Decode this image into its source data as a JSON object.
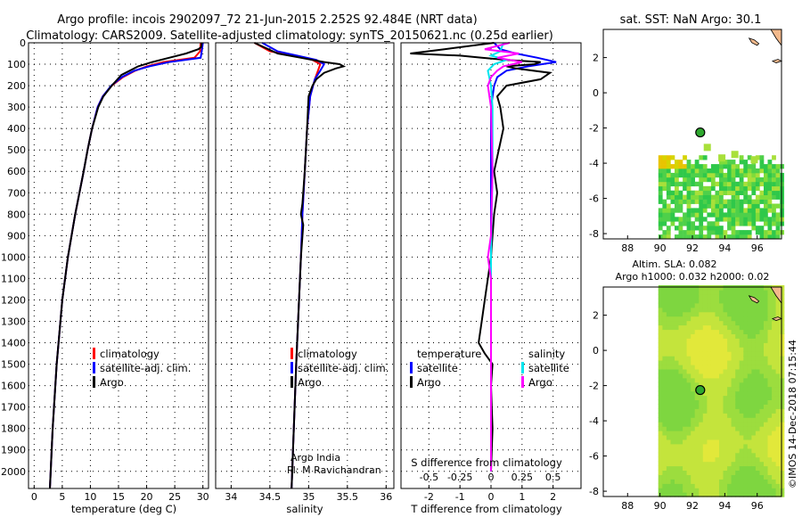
{
  "title_line1": "Argo profile: incois 2902097_72 21-Jun-2015 2.252S 92.484E (NRT data)",
  "title_line2": "Climatology: CARS2009. Satellite-adjusted climatology: synTS_20150621.nc (0.25d earlier)",
  "colors": {
    "climatology": "#ff0000",
    "satellite": "#0000ff",
    "argo": "#000000",
    "sat_salinity": "#00e5ee",
    "argo_salinity": "#ff00ff"
  },
  "chart_data": [
    {
      "id": "temperature",
      "type": "line",
      "xlabel": "temperature (deg C)",
      "ylabel": "",
      "xlim": [
        -1,
        31
      ],
      "ylim": [
        2080,
        0
      ],
      "xticks": [
        0,
        5,
        10,
        15,
        20,
        25,
        30
      ],
      "yticks": [
        0,
        100,
        200,
        300,
        400,
        500,
        600,
        700,
        800,
        900,
        1000,
        1100,
        1200,
        1300,
        1400,
        1500,
        1600,
        1700,
        1800,
        1900,
        2000
      ],
      "legend": [
        "climatology",
        "satellite-adj. clim.",
        "Argo"
      ],
      "series": [
        {
          "name": "climatology",
          "color": "#ff0000",
          "depth": [
            0,
            40,
            70,
            90,
            110,
            130,
            160,
            200,
            250,
            300,
            400,
            500,
            600,
            800,
            1000,
            1200,
            1500,
            1800,
            2080
          ],
          "values": [
            29.6,
            29.5,
            28.5,
            23.0,
            20.0,
            18.0,
            15.8,
            13.8,
            12.2,
            11.3,
            10.3,
            9.5,
            8.8,
            7.3,
            6.0,
            5.0,
            4.0,
            3.3,
            2.8
          ]
        },
        {
          "name": "satellite-adj. clim.",
          "color": "#0000ff",
          "depth": [
            0,
            40,
            70,
            90,
            110,
            130,
            160,
            200,
            250,
            300,
            400,
            500,
            600,
            800,
            1000,
            1200,
            1500,
            1800,
            2080
          ],
          "values": [
            30.0,
            29.8,
            29.6,
            24.0,
            20.5,
            17.8,
            15.6,
            13.7,
            12.2,
            11.3,
            10.3,
            9.5,
            8.8,
            7.3,
            6.0,
            5.0,
            4.0,
            3.3,
            2.8
          ]
        },
        {
          "name": "Argo",
          "color": "#000000",
          "depth": [
            0,
            20,
            30,
            50,
            70,
            90,
            110,
            130,
            150,
            200,
            250,
            300,
            400,
            500,
            600,
            800,
            1000,
            1200,
            1500,
            1800,
            2080
          ],
          "values": [
            29.8,
            29.7,
            29.2,
            27.0,
            24.0,
            21.0,
            18.5,
            17.0,
            15.5,
            13.8,
            12.3,
            11.4,
            10.3,
            9.5,
            8.8,
            7.3,
            6.0,
            5.0,
            4.0,
            3.3,
            2.8
          ]
        }
      ]
    },
    {
      "id": "salinity",
      "type": "line",
      "xlabel": "salinity",
      "ylabel": "",
      "xlim": [
        33.8,
        36.1
      ],
      "ylim": [
        2080,
        0
      ],
      "xticks": [
        34,
        34.5,
        35,
        35.5,
        36
      ],
      "legend": [
        "climatology",
        "satellite-adj. clim.",
        "Argo"
      ],
      "credit": [
        "Argo India",
        "PI: M Ravichandran"
      ],
      "series": [
        {
          "name": "climatology",
          "color": "#ff0000",
          "depth": [
            0,
            40,
            60,
            80,
            100,
            130,
            170,
            250,
            400,
            600,
            800,
            1000,
            1500,
            2080
          ],
          "values": [
            34.3,
            34.5,
            34.8,
            35.05,
            35.15,
            35.12,
            35.08,
            35.02,
            34.98,
            34.95,
            34.92,
            34.9,
            34.84,
            34.78
          ]
        },
        {
          "name": "satellite-adj. clim.",
          "color": "#0000ff",
          "depth": [
            0,
            40,
            60,
            80,
            100,
            130,
            170,
            250,
            400,
            600,
            800,
            1000,
            1500,
            2080
          ],
          "values": [
            34.4,
            34.6,
            34.85,
            35.1,
            35.2,
            35.15,
            35.08,
            35.02,
            34.98,
            34.95,
            34.92,
            34.9,
            34.84,
            34.78
          ]
        },
        {
          "name": "Argo",
          "color": "#000000",
          "depth": [
            0,
            50,
            70,
            90,
            100,
            110,
            120,
            140,
            170,
            200,
            250,
            400,
            600,
            750,
            800,
            850,
            1000,
            1500,
            2080
          ],
          "values": [
            34.3,
            34.6,
            34.9,
            35.2,
            35.4,
            35.45,
            35.35,
            35.2,
            35.1,
            35.05,
            35.0,
            34.98,
            34.95,
            34.92,
            34.9,
            34.93,
            34.9,
            34.84,
            34.78
          ]
        }
      ]
    },
    {
      "id": "difference",
      "type": "line",
      "xlabel": "T difference from climatology",
      "xlabel_top": "S difference from climatology",
      "xlim": [
        -2.9,
        2.9
      ],
      "ylim": [
        2080,
        0
      ],
      "xticks": [
        -2,
        -1,
        0,
        1,
        2
      ],
      "s_xticks_labels": [
        "-0.5",
        "-0.25",
        "0",
        "0.25",
        "0.5"
      ],
      "s_xticks": [
        -2,
        -1,
        0,
        1,
        2
      ],
      "legend_t_title": "temperature",
      "legend_s_title": "salinity",
      "legend_t": [
        "satellite",
        "Argo"
      ],
      "legend_s": [
        "satellite",
        "Argo"
      ],
      "series": [
        {
          "name": "T satellite",
          "color": "#0000ff",
          "depth": [
            0,
            30,
            50,
            70,
            90,
            110,
            130,
            160,
            200,
            300,
            600,
            1000,
            1500,
            2000
          ],
          "values": [
            0.1,
            0.3,
            0.8,
            1.5,
            2.1,
            1.2,
            0.5,
            0.2,
            0.1,
            0.0,
            0.0,
            0.0,
            0.0,
            0.0
          ]
        },
        {
          "name": "T Argo",
          "color": "#000000",
          "depth": [
            0,
            30,
            50,
            60,
            70,
            80,
            90,
            100,
            110,
            120,
            140,
            170,
            200,
            250,
            300,
            400,
            500,
            600,
            700,
            800,
            900,
            1000,
            1100,
            1200,
            1300,
            1400,
            1450,
            1500,
            1600,
            1800,
            2000
          ],
          "values": [
            0.1,
            -1.5,
            -2.6,
            -1.0,
            -0.3,
            0.5,
            1.6,
            1.4,
            0.5,
            0.8,
            1.9,
            1.6,
            0.5,
            0.2,
            0.3,
            0.4,
            0.25,
            0.1,
            0.2,
            0.1,
            0.05,
            0.0,
            -0.1,
            -0.2,
            -0.3,
            -0.4,
            -0.2,
            0.05,
            0.0,
            0.05,
            0.0
          ]
        },
        {
          "name": "S satellite",
          "color": "#00e5ee",
          "depth": [
            0,
            40,
            60,
            80,
            100,
            130,
            200,
            300,
            600,
            1000,
            1500,
            2000
          ],
          "values": [
            0.4,
            0.3,
            0.0,
            0.5,
            0.1,
            -0.1,
            0.0,
            0.05,
            0.05,
            0.0,
            0.0,
            0.0
          ]
        },
        {
          "name": "S Argo",
          "color": "#ff00ff",
          "depth": [
            0,
            30,
            50,
            70,
            90,
            110,
            130,
            160,
            200,
            300,
            600,
            900,
            1000,
            1100,
            1500,
            2000
          ],
          "values": [
            0.6,
            -0.2,
            0.9,
            0.2,
            1.0,
            0.4,
            0.2,
            0.0,
            -0.1,
            0.0,
            0.05,
            0.0,
            -0.1,
            0.0,
            0.0,
            0.0
          ]
        }
      ]
    },
    {
      "id": "sst_map",
      "type": "heatmap",
      "title": "sat. SST: NaN Argo: 30.1",
      "xlim": [
        86.5,
        97.5
      ],
      "ylim": [
        -8.3,
        3.6
      ],
      "xticks": [
        88,
        90,
        92,
        94,
        96
      ],
      "yticks": [
        2,
        0,
        -2,
        -4,
        -6,
        -8
      ],
      "argo_position": [
        92.484,
        -2.252
      ]
    },
    {
      "id": "sla_map",
      "type": "heatmap",
      "title_line1": "Altim. SLA: 0.082",
      "title_line2": "Argo h1000: 0.032 h2000: 0.02",
      "xlim": [
        86.5,
        97.5
      ],
      "ylim": [
        -8.3,
        3.6
      ],
      "xticks": [
        88,
        90,
        92,
        94,
        96
      ],
      "yticks": [
        2,
        0,
        -2,
        -4,
        -6,
        -8
      ],
      "argo_position": [
        92.484,
        -2.252
      ]
    }
  ],
  "footer_stamp": "©IMOS 14-Dec-2018 07:15:44"
}
